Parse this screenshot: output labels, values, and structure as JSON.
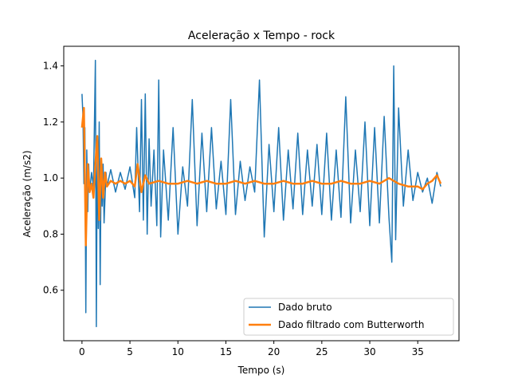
{
  "chart_data": {
    "type": "line",
    "title": "Aceleração x Tempo - rock",
    "xlabel": "Tempo (s)",
    "ylabel": "Aceleração (m/s2)",
    "xlim": [
      -1.9,
      39.3
    ],
    "ylim": [
      0.42,
      1.47
    ],
    "xticks": [
      0,
      5,
      10,
      15,
      20,
      25,
      30,
      35
    ],
    "yticks": [
      0.6,
      0.8,
      1.0,
      1.2,
      1.4
    ],
    "xtick_labels": [
      "0",
      "5",
      "10",
      "15",
      "20",
      "25",
      "30",
      "35"
    ],
    "ytick_labels": [
      "0.6",
      "0.8",
      "1.0",
      "1.2",
      "1.4"
    ],
    "grid": false,
    "legend_position": "lower right",
    "colors": {
      "raw": "#1f77b4",
      "filtered": "#ff7f0e"
    },
    "series": [
      {
        "name": "Dado bruto",
        "x": [
          0.0,
          0.1,
          0.2,
          0.3,
          0.4,
          0.5,
          0.6,
          0.7,
          0.8,
          1.0,
          1.2,
          1.4,
          1.5,
          1.6,
          1.7,
          1.8,
          1.9,
          2.0,
          2.1,
          2.2,
          2.3,
          2.5,
          2.6,
          3.0,
          3.5,
          4.0,
          4.5,
          5.0,
          5.5,
          5.7,
          6.0,
          6.2,
          6.4,
          6.6,
          6.8,
          7.0,
          7.2,
          7.5,
          7.8,
          8.0,
          8.2,
          8.5,
          9.0,
          9.5,
          10.0,
          10.5,
          11.0,
          11.5,
          12.0,
          12.5,
          13.0,
          13.5,
          14.0,
          14.5,
          15.0,
          15.5,
          16.0,
          16.5,
          17.0,
          17.5,
          18.0,
          18.5,
          19.0,
          19.5,
          20.0,
          20.5,
          21.0,
          21.5,
          22.0,
          22.5,
          23.0,
          23.5,
          24.0,
          24.5,
          25.0,
          25.5,
          26.0,
          26.5,
          27.0,
          27.5,
          28.0,
          28.5,
          29.0,
          29.5,
          30.0,
          30.5,
          31.0,
          31.5,
          32.0,
          32.3,
          32.5,
          32.7,
          33.0,
          33.5,
          34.0,
          34.5,
          35.0,
          35.5,
          36.0,
          36.5,
          37.0,
          37.4
        ],
        "y": [
          1.3,
          1.22,
          0.98,
          1.18,
          0.52,
          1.1,
          0.88,
          1.05,
          0.95,
          1.02,
          0.97,
          1.42,
          0.47,
          1.15,
          0.82,
          1.2,
          0.62,
          1.07,
          0.9,
          1.05,
          0.84,
          1.02,
          0.97,
          1.03,
          0.95,
          1.02,
          0.96,
          1.04,
          0.93,
          1.18,
          0.88,
          1.28,
          0.85,
          1.3,
          0.8,
          1.14,
          0.9,
          1.1,
          0.83,
          1.35,
          0.79,
          1.1,
          0.85,
          1.18,
          0.8,
          1.04,
          0.9,
          1.28,
          0.83,
          1.16,
          0.88,
          1.18,
          0.89,
          1.06,
          0.87,
          1.28,
          0.87,
          1.06,
          0.92,
          1.04,
          0.95,
          1.35,
          0.79,
          1.12,
          0.88,
          1.18,
          0.85,
          1.1,
          0.89,
          1.16,
          0.87,
          1.1,
          0.9,
          1.12,
          0.87,
          1.16,
          0.85,
          1.1,
          0.86,
          1.29,
          0.84,
          1.1,
          0.88,
          1.2,
          0.83,
          1.18,
          0.84,
          1.22,
          0.86,
          0.7,
          1.4,
          0.78,
          1.25,
          0.9,
          1.1,
          0.92,
          1.02,
          0.95,
          1.0,
          0.91,
          1.02,
          0.97
        ]
      },
      {
        "name": "Dado filtrado com Butterworth",
        "x": [
          0.0,
          0.2,
          0.4,
          0.6,
          0.8,
          1.0,
          1.2,
          1.4,
          1.6,
          1.8,
          2.0,
          2.2,
          2.4,
          2.6,
          3.0,
          3.5,
          4.0,
          4.5,
          5.0,
          5.5,
          5.8,
          6.2,
          6.6,
          7.0,
          8.0,
          9.0,
          10.0,
          11.0,
          12.0,
          13.0,
          14.0,
          15.0,
          16.0,
          17.0,
          18.0,
          19.0,
          20.0,
          21.0,
          22.0,
          23.0,
          24.0,
          25.0,
          26.0,
          27.0,
          28.0,
          29.0,
          30.0,
          31.0,
          32.0,
          32.5,
          33.0,
          34.0,
          35.0,
          35.5,
          36.0,
          36.5,
          37.0,
          37.4
        ],
        "y": [
          1.18,
          1.25,
          0.76,
          1.05,
          0.95,
          0.98,
          0.93,
          1.05,
          1.15,
          0.85,
          1.07,
          0.93,
          1.02,
          0.97,
          0.99,
          0.98,
          0.99,
          0.98,
          0.99,
          0.97,
          1.05,
          0.95,
          1.01,
          0.98,
          0.99,
          0.98,
          0.98,
          0.99,
          0.98,
          0.99,
          0.98,
          0.98,
          0.99,
          0.98,
          0.99,
          0.98,
          0.98,
          0.99,
          0.98,
          0.98,
          0.99,
          0.98,
          0.98,
          0.99,
          0.98,
          0.98,
          0.99,
          0.98,
          1.0,
          0.99,
          0.98,
          0.97,
          0.97,
          0.96,
          0.98,
          0.99,
          1.01,
          0.98
        ]
      }
    ]
  }
}
